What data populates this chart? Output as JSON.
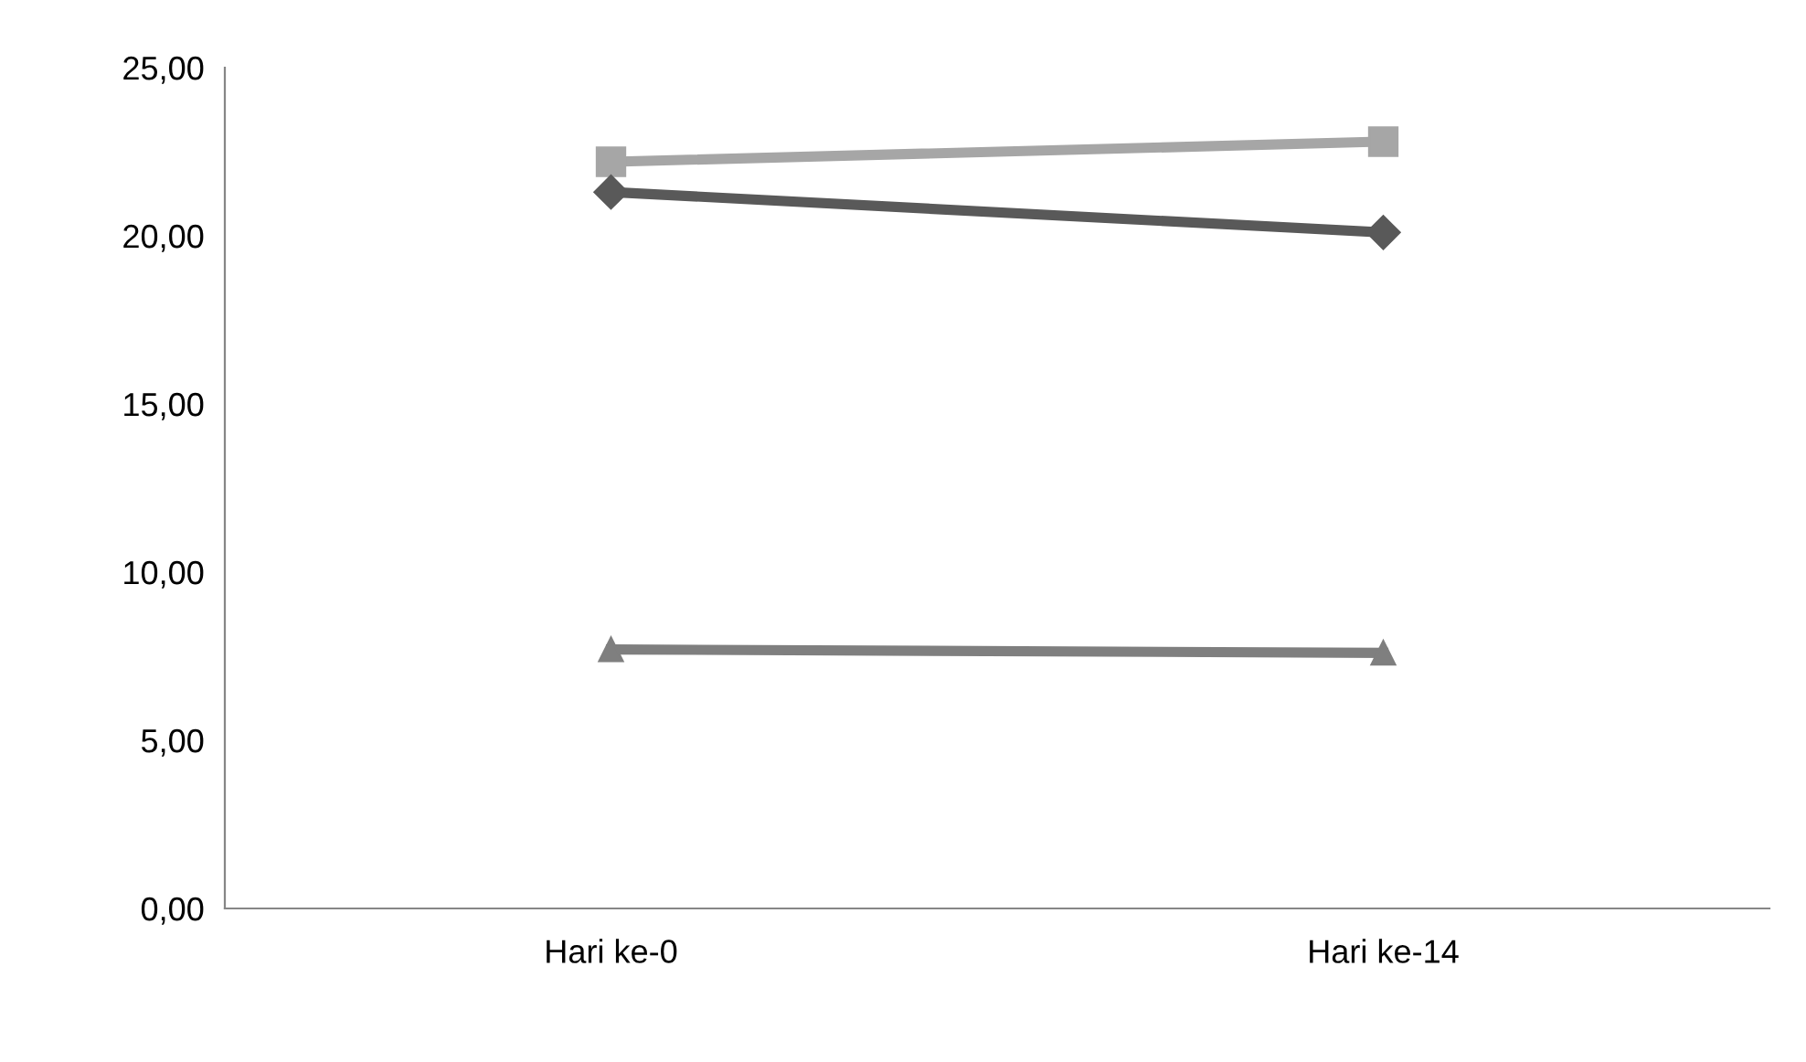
{
  "chart_data": {
    "type": "line",
    "categories": [
      "Hari ke-0",
      "Hari ke-14"
    ],
    "series": [
      {
        "color": "#a6a6a6",
        "marker": "square",
        "values": [
          22.2,
          22.8
        ]
      },
      {
        "color": "#595959",
        "marker": "diamond",
        "values": [
          21.3,
          20.1
        ]
      },
      {
        "color": "#7f7f7f",
        "marker": "triangle",
        "values": [
          7.7,
          7.6
        ]
      }
    ],
    "ylim": [
      0,
      25
    ],
    "yticks": [
      {
        "value": 0,
        "label": "0,00"
      },
      {
        "value": 5,
        "label": "5,00"
      },
      {
        "value": 10,
        "label": "10,00"
      },
      {
        "value": 15,
        "label": "15,00"
      },
      {
        "value": 20,
        "label": "20,00"
      },
      {
        "value": 25,
        "label": "25,00"
      }
    ],
    "grid": false,
    "legend": false
  }
}
